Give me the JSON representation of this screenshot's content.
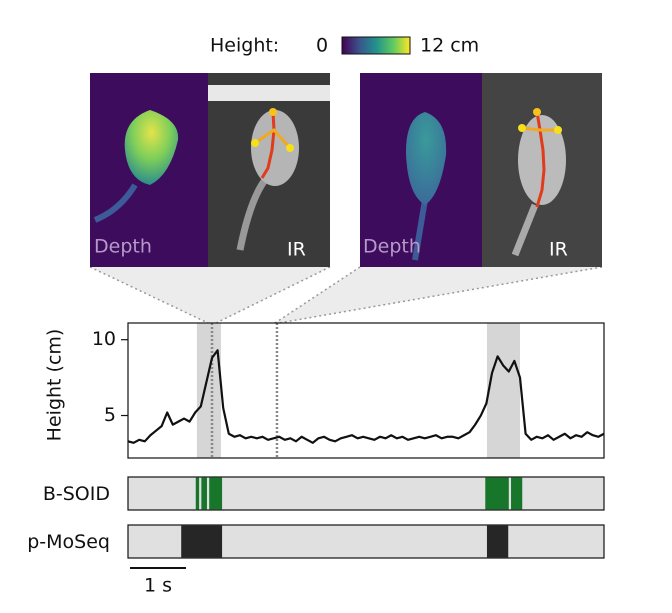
{
  "chart_data": {
    "type": "line",
    "colorbar": {
      "label": "Height:",
      "min_label": "0",
      "max_label": "12 cm"
    },
    "panels": [
      {
        "left_label": "Depth",
        "right_label": "IR"
      },
      {
        "left_label": "Depth",
        "right_label": "IR"
      }
    ],
    "y_label": "Height (cm)",
    "xlim": [
      0,
      8.5
    ],
    "ylim": [
      2.2,
      11.1
    ],
    "yticks": [
      5,
      10
    ],
    "highlights": [
      [
        1.23,
        1.66
      ],
      [
        6.41,
        7.0
      ]
    ],
    "markers": [
      1.5,
      2.66
    ],
    "series": [
      {
        "color": "#111111",
        "x": [
          0,
          0.1,
          0.2,
          0.3,
          0.4,
          0.5,
          0.6,
          0.7,
          0.8,
          0.9,
          1.0,
          1.1,
          1.2,
          1.3,
          1.4,
          1.5,
          1.6,
          1.7,
          1.8,
          1.9,
          2.0,
          2.1,
          2.2,
          2.3,
          2.4,
          2.5,
          2.6,
          2.7,
          2.8,
          2.9,
          3.0,
          3.1,
          3.2,
          3.3,
          3.4,
          3.5,
          3.6,
          3.7,
          3.8,
          3.9,
          4.0,
          4.1,
          4.2,
          4.3,
          4.4,
          4.5,
          4.6,
          4.7,
          4.8,
          4.9,
          5.0,
          5.1,
          5.2,
          5.3,
          5.4,
          5.5,
          5.6,
          5.7,
          5.8,
          5.9,
          6.0,
          6.1,
          6.2,
          6.3,
          6.4,
          6.5,
          6.6,
          6.7,
          6.8,
          6.9,
          7.0,
          7.1,
          7.2,
          7.3,
          7.4,
          7.5,
          7.6,
          7.7,
          7.8,
          7.9,
          8.0,
          8.1,
          8.2,
          8.3,
          8.4,
          8.5
        ],
        "values": [
          3.3,
          3.2,
          3.4,
          3.3,
          3.7,
          4.0,
          4.3,
          5.2,
          4.4,
          4.6,
          4.8,
          4.6,
          5.2,
          5.6,
          7.2,
          8.8,
          9.3,
          5.5,
          3.8,
          3.6,
          3.7,
          3.5,
          3.6,
          3.5,
          3.6,
          3.4,
          3.5,
          3.6,
          3.4,
          3.5,
          3.3,
          3.6,
          3.4,
          3.2,
          3.5,
          3.6,
          3.4,
          3.3,
          3.5,
          3.6,
          3.7,
          3.5,
          3.6,
          3.5,
          3.4,
          3.6,
          3.5,
          3.7,
          3.5,
          3.6,
          3.4,
          3.5,
          3.6,
          3.5,
          3.6,
          3.7,
          3.5,
          3.6,
          3.6,
          3.5,
          3.7,
          3.9,
          4.4,
          5.0,
          5.8,
          7.8,
          8.9,
          8.3,
          7.9,
          8.6,
          7.5,
          3.8,
          3.4,
          3.6,
          3.5,
          3.7,
          3.4,
          3.6,
          3.8,
          3.5,
          3.7,
          3.6,
          3.9,
          3.7,
          3.6,
          3.8
        ]
      }
    ],
    "ethograms": [
      {
        "name": "B-SOID",
        "color": "#17762a",
        "segments": [
          [
            1.21,
            1.27
          ],
          [
            1.31,
            1.41
          ],
          [
            1.45,
            1.68
          ],
          [
            6.38,
            6.8
          ],
          [
            6.84,
            7.04
          ]
        ]
      },
      {
        "name": "p-MoSeq",
        "color": "#262626",
        "segments": [
          [
            0.95,
            1.68
          ],
          [
            6.41,
            6.79
          ]
        ]
      }
    ],
    "scalebar": {
      "length": 1,
      "label": "1 s"
    }
  }
}
